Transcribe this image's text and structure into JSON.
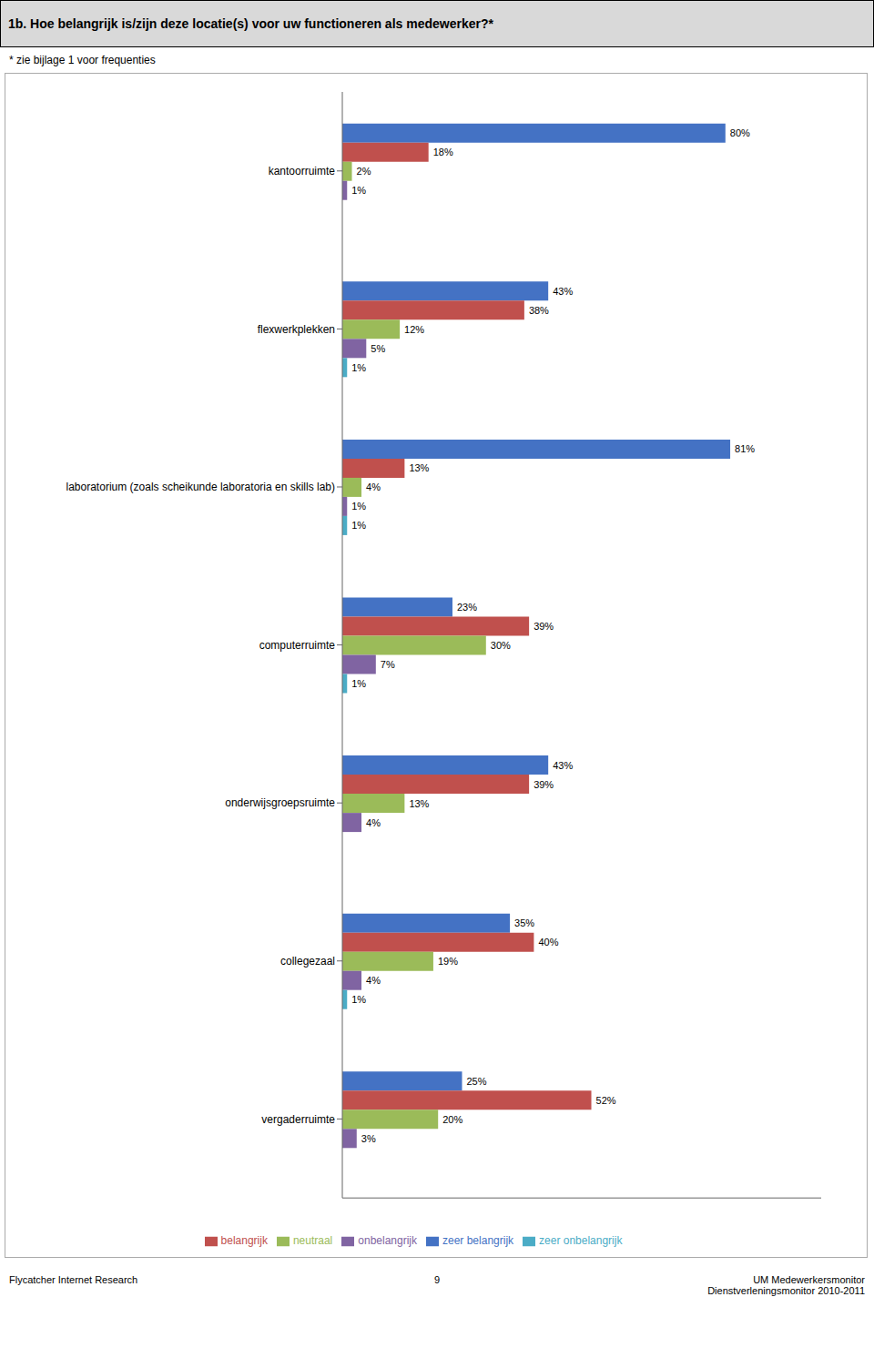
{
  "chart_data": {
    "type": "bar",
    "orientation": "horizontal",
    "title": "1b. Hoe belangrijk is/zijn deze locatie(s) voor uw functioneren als medewerker?*",
    "subtitle": "* zie bijlage 1 voor frequenties",
    "categories": [
      "kantoorruimte",
      "flexwerkplekken",
      "laboratorium (zoals scheikunde laboratoria en skills lab)",
      "computerruimte",
      "onderwijsgroepsruimte",
      "collegezaal",
      "vergaderruimte"
    ],
    "series": [
      {
        "name": "zeer belangrijk",
        "color": "#4472C4",
        "values": [
          80,
          43,
          81,
          23,
          43,
          35,
          25
        ],
        "value_labels": [
          "80%",
          "43%",
          "81%",
          "23%",
          "43%",
          "35%",
          "25%"
        ]
      },
      {
        "name": "belangrijk",
        "color": "#C0504D",
        "values": [
          18,
          38,
          13,
          39,
          39,
          40,
          52
        ],
        "value_labels": [
          "18%",
          "38%",
          "13%",
          "39%",
          "39%",
          "40%",
          "52%"
        ]
      },
      {
        "name": "neutraal",
        "color": "#9BBB59",
        "values": [
          2,
          12,
          4,
          30,
          13,
          19,
          20
        ],
        "value_labels": [
          "2%",
          "12%",
          "4%",
          "30%",
          "13%",
          "19%",
          "20%"
        ]
      },
      {
        "name": "onbelangrijk",
        "color": "#8064A2",
        "values": [
          1,
          5,
          1,
          7,
          4,
          4,
          3
        ],
        "value_labels": [
          "1%",
          "5%",
          "1%",
          "7%",
          "4%",
          "4%",
          "3%"
        ]
      },
      {
        "name": "zeer onbelangrijk",
        "color": "#4BACC6",
        "values": [
          0,
          1,
          1,
          1,
          0,
          1,
          0
        ],
        "value_labels": [
          null,
          "1%",
          "1%",
          "1%",
          null,
          "1%",
          null
        ]
      }
    ],
    "xlim": [
      0,
      100
    ],
    "tick_labels": false,
    "grid": false,
    "legend": "bottom",
    "data_labels": true,
    "annotations": [
      "Flycatcher Internet Research",
      "9",
      "UM Medewerkersmonitor\nDienstverleningsmonitor 2010-2011"
    ]
  }
}
